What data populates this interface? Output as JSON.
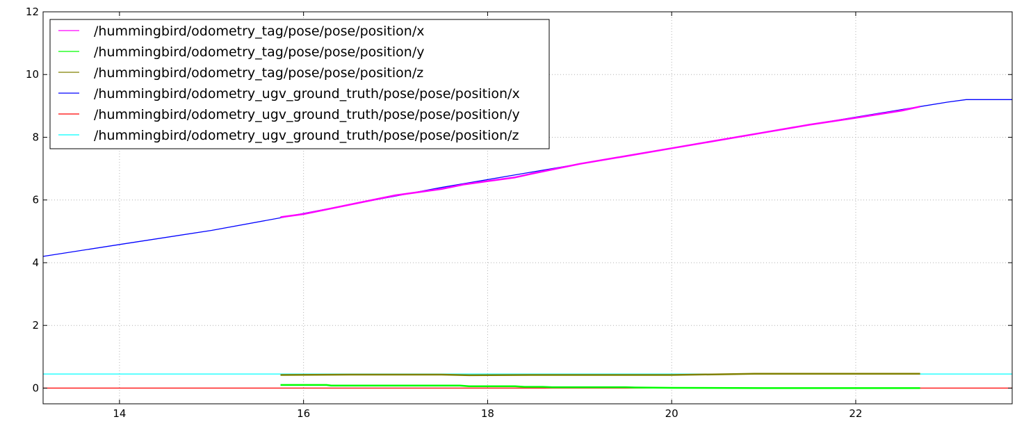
{
  "chart_data": {
    "type": "line",
    "title": "",
    "xlabel": "",
    "ylabel": "",
    "xlim": [
      13.17,
      23.7
    ],
    "ylim": [
      -0.5,
      12
    ],
    "grid": true,
    "legend_position": "top-left",
    "x_ticks": [
      14,
      16,
      18,
      20,
      22
    ],
    "x_tick_labels": [
      "14",
      "16",
      "18",
      "20",
      "22"
    ],
    "y_ticks": [
      0,
      2,
      4,
      6,
      8,
      10,
      12
    ],
    "y_tick_labels": [
      "0",
      "2",
      "4",
      "6",
      "8",
      "10",
      "12"
    ],
    "series": [
      {
        "name": "/hummingbird/odometry_tag/pose/pose/position/x",
        "color": "#ff00ff",
        "points": [
          [
            15.75,
            5.45
          ],
          [
            16.0,
            5.55
          ],
          [
            16.25,
            5.7
          ],
          [
            16.5,
            5.85
          ],
          [
            17.0,
            6.15
          ],
          [
            17.5,
            6.35
          ],
          [
            17.75,
            6.5
          ],
          [
            18.0,
            6.6
          ],
          [
            18.3,
            6.72
          ],
          [
            18.5,
            6.85
          ],
          [
            19.0,
            7.15
          ],
          [
            19.5,
            7.4
          ],
          [
            20.0,
            7.65
          ],
          [
            20.5,
            7.9
          ],
          [
            21.0,
            8.15
          ],
          [
            21.5,
            8.4
          ],
          [
            22.0,
            8.62
          ],
          [
            22.5,
            8.85
          ],
          [
            22.7,
            8.98
          ]
        ]
      },
      {
        "name": "/hummingbird/odometry_tag/pose/pose/position/y",
        "color": "#00ff00",
        "points": [
          [
            15.75,
            0.1
          ],
          [
            16.0,
            0.1
          ],
          [
            16.25,
            0.1
          ],
          [
            16.3,
            0.08
          ],
          [
            17.0,
            0.08
          ],
          [
            17.7,
            0.08
          ],
          [
            17.8,
            0.06
          ],
          [
            18.3,
            0.06
          ],
          [
            18.4,
            0.04
          ],
          [
            18.6,
            0.04
          ],
          [
            18.7,
            0.03
          ],
          [
            19.5,
            0.03
          ],
          [
            19.6,
            0.02
          ],
          [
            20.0,
            0.01
          ],
          [
            21.0,
            0.0
          ],
          [
            22.0,
            0.0
          ],
          [
            22.7,
            0.0
          ]
        ]
      },
      {
        "name": "/hummingbird/odometry_tag/pose/pose/position/z",
        "color": "#808000",
        "points": [
          [
            15.75,
            0.42
          ],
          [
            16.5,
            0.43
          ],
          [
            17.5,
            0.43
          ],
          [
            17.8,
            0.41
          ],
          [
            18.5,
            0.42
          ],
          [
            19.5,
            0.42
          ],
          [
            20.0,
            0.42
          ],
          [
            20.5,
            0.44
          ],
          [
            20.9,
            0.46
          ],
          [
            21.5,
            0.46
          ],
          [
            22.0,
            0.46
          ],
          [
            22.7,
            0.46
          ]
        ]
      },
      {
        "name": "/hummingbird/odometry_ugv_ground_truth/pose/pose/position/x",
        "color": "#0000ff",
        "points": [
          [
            13.17,
            4.2
          ],
          [
            14.0,
            4.58
          ],
          [
            15.0,
            5.03
          ],
          [
            15.75,
            5.43
          ],
          [
            16.5,
            5.85
          ],
          [
            17.5,
            6.4
          ],
          [
            18.5,
            6.9
          ],
          [
            19.5,
            7.4
          ],
          [
            20.5,
            7.9
          ],
          [
            21.5,
            8.4
          ],
          [
            22.7,
            8.98
          ],
          [
            23.0,
            9.12
          ],
          [
            23.2,
            9.2
          ],
          [
            23.7,
            9.2
          ]
        ]
      },
      {
        "name": "/hummingbird/odometry_ugv_ground_truth/pose/pose/position/y",
        "color": "#ff0000",
        "points": [
          [
            13.17,
            0.0
          ],
          [
            23.7,
            0.0
          ]
        ]
      },
      {
        "name": "/hummingbird/odometry_ugv_ground_truth/pose/pose/position/z",
        "color": "#00ffff",
        "points": [
          [
            13.17,
            0.45
          ],
          [
            23.7,
            0.45
          ]
        ]
      }
    ]
  }
}
